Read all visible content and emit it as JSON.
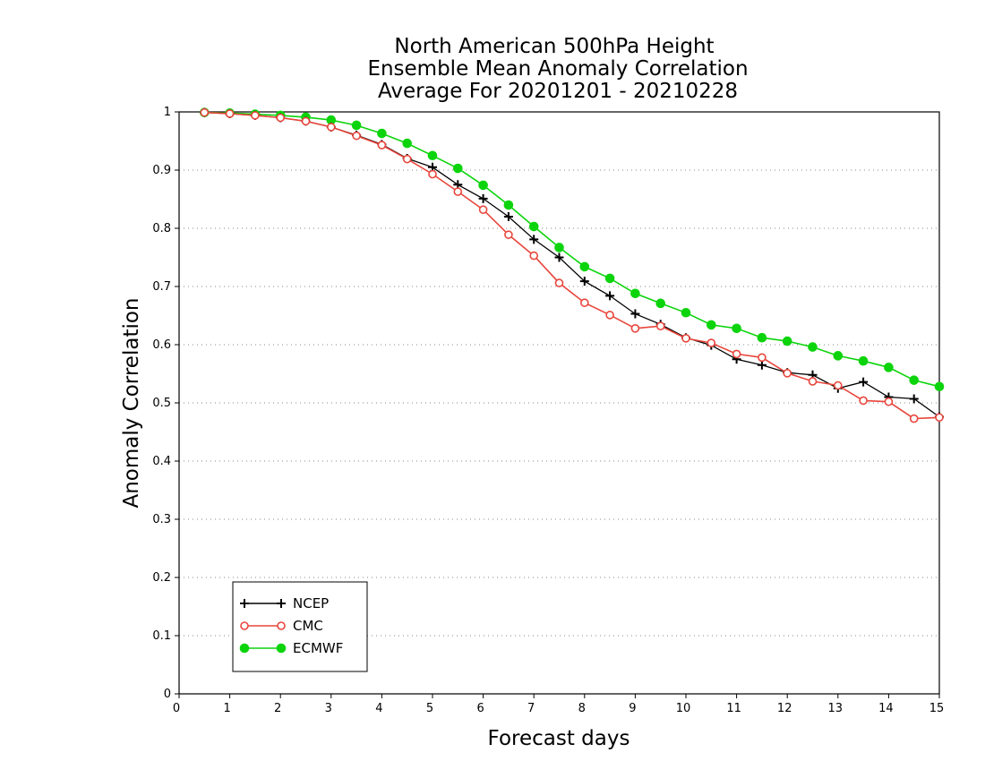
{
  "chart_data": {
    "type": "line",
    "title_lines": [
      "North American 500hPa Height",
      "Ensemble Mean Anomaly Correlation",
      "Average For 20201201 - 20210228"
    ],
    "xlabel": "Forecast days",
    "ylabel": "Anomaly Correlation",
    "xlim": [
      0,
      15
    ],
    "ylim": [
      0,
      1
    ],
    "x_ticks": [
      0,
      1,
      2,
      3,
      4,
      5,
      6,
      7,
      8,
      9,
      10,
      11,
      12,
      13,
      14,
      15
    ],
    "x_tick_labels": [
      "0",
      "1",
      "2",
      "3",
      "4",
      "5",
      "6",
      "7",
      "8",
      "9",
      "10",
      "11",
      "12",
      "13",
      "14",
      "15"
    ],
    "y_ticks": [
      0,
      0.1,
      0.2,
      0.3,
      0.4,
      0.5,
      0.6,
      0.7,
      0.8,
      0.9,
      1
    ],
    "y_tick_labels": [
      "0",
      "0.1",
      "0.2",
      "0.3",
      "0.4",
      "0.5",
      "0.6",
      "0.7",
      "0.8",
      "0.9",
      "1"
    ],
    "grid": "horizontal dotted",
    "legend_position": "bottom-left",
    "x": [
      0.5,
      1,
      1.5,
      2,
      2.5,
      3,
      3.5,
      4,
      4.5,
      5,
      5.5,
      6,
      6.5,
      7,
      7.5,
      8,
      8.5,
      9,
      9.5,
      10,
      10.5,
      11,
      11.5,
      12,
      12.5,
      13,
      13.5,
      14,
      14.5,
      15
    ],
    "series": [
      {
        "name": "NCEP",
        "color": "#000000",
        "marker": "plus",
        "values": [
          0.999,
          0.997,
          0.994,
          0.99,
          0.984,
          0.974,
          0.96,
          0.944,
          0.92,
          0.905,
          0.875,
          0.851,
          0.82,
          0.781,
          0.75,
          0.709,
          0.684,
          0.653,
          0.635,
          0.612,
          0.599,
          0.575,
          0.565,
          0.552,
          0.548,
          0.525,
          0.536,
          0.51,
          0.507,
          0.476
        ]
      },
      {
        "name": "CMC",
        "color": "#e8463c",
        "marker": "open-circle",
        "values": [
          0.999,
          0.997,
          0.994,
          0.99,
          0.984,
          0.974,
          0.959,
          0.943,
          0.919,
          0.893,
          0.863,
          0.832,
          0.789,
          0.753,
          0.706,
          0.672,
          0.651,
          0.628,
          0.632,
          0.611,
          0.603,
          0.584,
          0.578,
          0.551,
          0.537,
          0.53,
          0.504,
          0.502,
          0.473,
          0.475
        ]
      },
      {
        "name": "ECMWF",
        "color": "#0cd40c",
        "marker": "filled-circle",
        "values": [
          0.999,
          0.998,
          0.996,
          0.994,
          0.991,
          0.986,
          0.977,
          0.963,
          0.946,
          0.925,
          0.903,
          0.874,
          0.84,
          0.803,
          0.767,
          0.734,
          0.714,
          0.688,
          0.671,
          0.655,
          0.634,
          0.628,
          0.612,
          0.606,
          0.596,
          0.581,
          0.572,
          0.561,
          0.539,
          0.528
        ]
      }
    ]
  }
}
